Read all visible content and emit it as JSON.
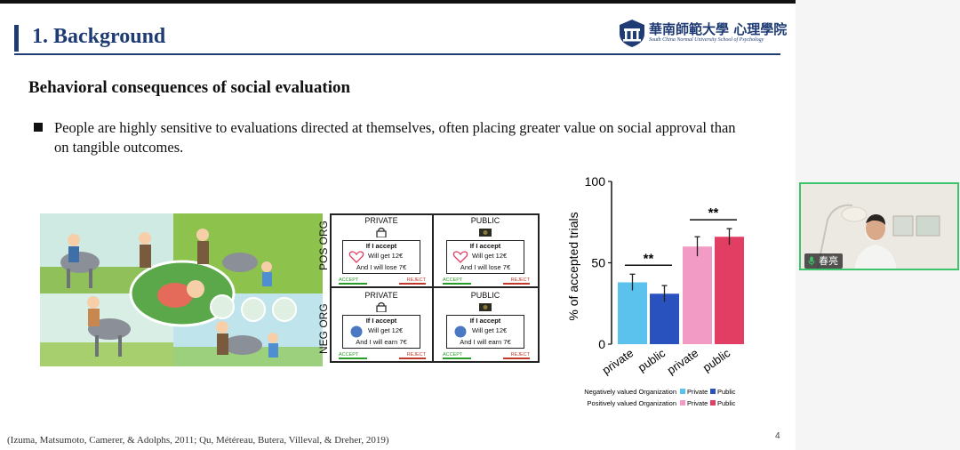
{
  "slide": {
    "title": "1. Background",
    "logo_cn": "華南師範大學 心理學院",
    "logo_en": "South China Normal University School of Psychology",
    "subtitle": "Behavioral consequences of social evaluation",
    "bullet": "People are highly sensitive to evaluations directed at themselves, often placing greater value on social approval than on tangible outcomes.",
    "citation": "(Izuma, Matsumoto, Camerer, & Adolphs, 2011; Qu, Météreau, Butera, Villeval, & Dreher, 2019)",
    "page_number": "4"
  },
  "task_figure": {
    "row_labels": [
      "POS ORG",
      "NEG ORG"
    ],
    "cells": [
      {
        "head": "PRIVATE",
        "line1": "If I accept",
        "line2": "Will get 12€",
        "line3": "And I will lose 7€",
        "accept": "ACCEPT",
        "reject": "REJECT",
        "symbol": "heart-icon",
        "top_icon": "padlock-icon"
      },
      {
        "head": "PUBLIC",
        "line1": "If I accept",
        "line2": "Will get 12€",
        "line3": "And I will lose 7€",
        "accept": "ACCEPT",
        "reject": "REJECT",
        "symbol": "heart-icon",
        "top_icon": "camera-icon"
      },
      {
        "head": "PRIVATE",
        "line1": "If I accept",
        "line2": "Will get 12€",
        "line3": "And I will earn 7€",
        "accept": "ACCEPT",
        "reject": "REJECT",
        "symbol": "badge-icon",
        "top_icon": "padlock-icon"
      },
      {
        "head": "PUBLIC",
        "line1": "If I accept",
        "line2": "Will get 12€",
        "line3": "And I will earn 7€",
        "accept": "ACCEPT",
        "reject": "REJECT",
        "symbol": "badge-icon",
        "top_icon": "camera-icon"
      }
    ]
  },
  "chart_data": {
    "type": "bar",
    "ylabel": "% of accepted trials",
    "ylim": [
      0,
      100
    ],
    "yticks": [
      "0",
      "50",
      "100"
    ],
    "categories": [
      "private",
      "public",
      "private",
      "public"
    ],
    "values": [
      38,
      31,
      60,
      66
    ],
    "errors": [
      5,
      5,
      6,
      5
    ],
    "colors": [
      "#5bc2ee",
      "#2a52be",
      "#f29bc5",
      "#e23d62"
    ],
    "significance": [
      {
        "pair": [
          0,
          1
        ],
        "label": "**"
      },
      {
        "pair": [
          2,
          3
        ],
        "label": "**"
      }
    ],
    "legend": {
      "rows": [
        {
          "group": "Negatively valued Organization",
          "items": [
            {
              "label": "Private",
              "color": "#5bc2ee"
            },
            {
              "label": "Public",
              "color": "#2a52be"
            }
          ]
        },
        {
          "group": "Positively valued Organization",
          "items": [
            {
              "label": "Private",
              "color": "#f29bc5"
            },
            {
              "label": "Public",
              "color": "#e23d62"
            }
          ]
        }
      ]
    }
  },
  "video": {
    "participant_name": "春亮",
    "border_color": "#3cc46a"
  }
}
